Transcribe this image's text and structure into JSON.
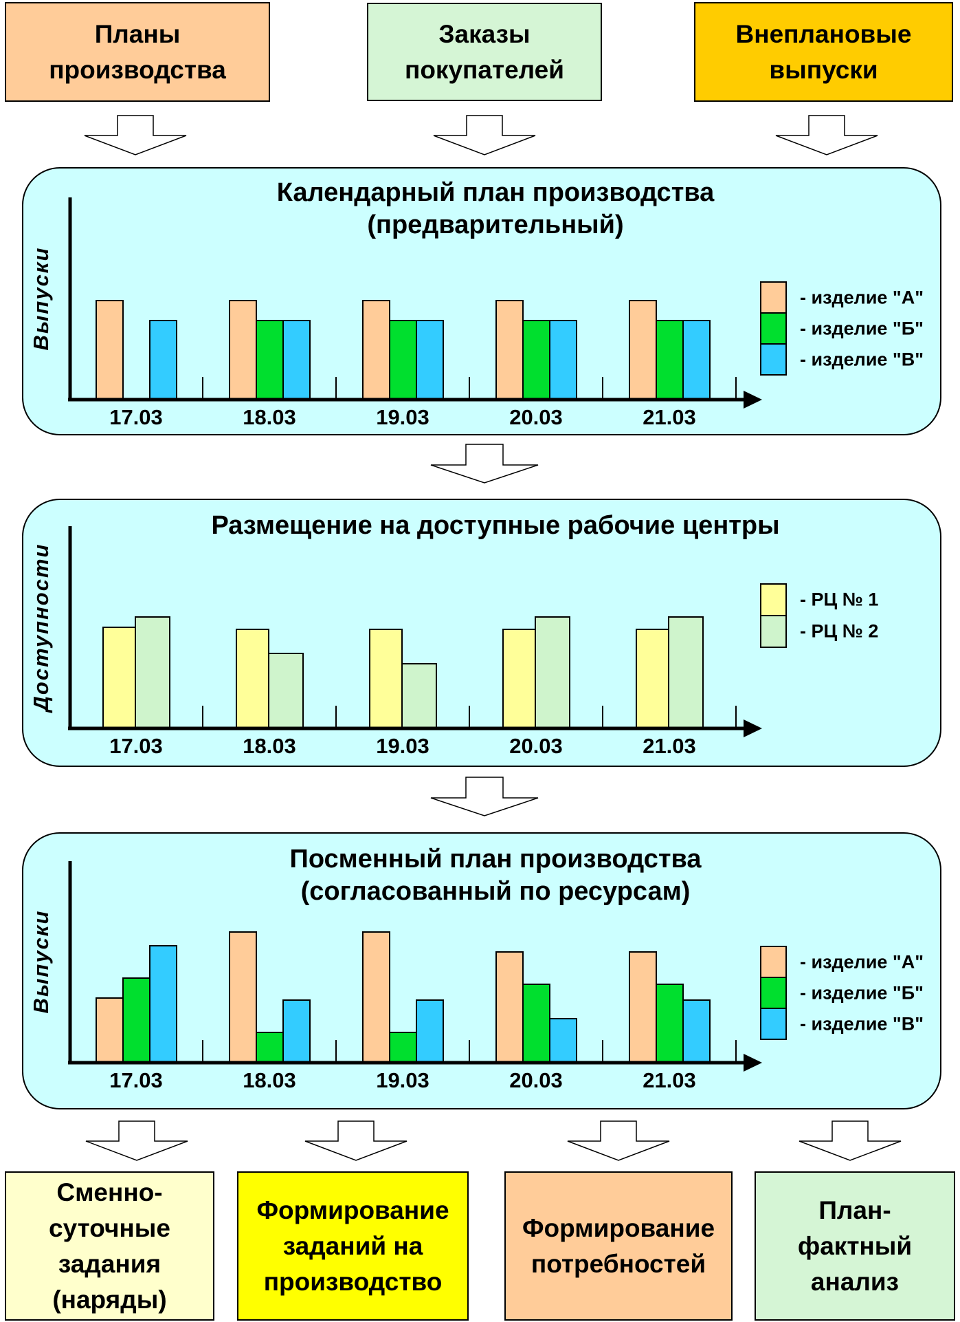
{
  "colors": {
    "panel_bg": "#CCFFFF",
    "product_a": "#FFCC99",
    "product_b": "#00DF2E",
    "product_v": "#33CCFF",
    "wc1": "#FFFF99",
    "wc2": "#CFF4CC",
    "source_plans": "#FFCC99",
    "source_orders": "#D5F5D5",
    "source_unplanned": "#FFCC00",
    "out_shift_tasks": "#FFFFCC",
    "out_prod_tasks": "#FFFF00",
    "out_requirements": "#FFCC99",
    "out_plan_fact": "#D5F5D5"
  },
  "sources": [
    {
      "label": "Планы\nпроизводства",
      "color": "#FFCC99"
    },
    {
      "label": "Заказы\nпокупателей",
      "color": "#D5F5D5"
    },
    {
      "label": "Внеплановые\nвыпуски",
      "color": "#FFCC00"
    }
  ],
  "panels": [
    {
      "title": "Календарный план производства\n(предварительный)",
      "ylabel": "Выпуски"
    },
    {
      "title": "Размещение на доступные рабочие центры",
      "ylabel": "Доступности"
    },
    {
      "title": "Посменный план производства\n(согласованный по ресурсам)",
      "ylabel": "Выпуски"
    }
  ],
  "outputs": [
    {
      "label": "Сменно-\nсуточные\nзадания\n(наряды)",
      "color": "#FFFFCC"
    },
    {
      "label": "Формирование\nзаданий на\nпроизводство",
      "color": "#FFFF00"
    },
    {
      "label": "Формирование\nпотребностей",
      "color": "#FFCC99"
    },
    {
      "label": "План-\nфактный\nанализ",
      "color": "#D5F5D5"
    }
  ],
  "chart_data": [
    {
      "type": "bar",
      "title": "Календарный план производства (предварительный)",
      "ylabel": "Выпуски",
      "xlabel": "",
      "categories": [
        "17.03",
        "18.03",
        "19.03",
        "20.03",
        "21.03"
      ],
      "series": [
        {
          "name": "изделие \"А\"",
          "legend_label": "- изделие \"А\"",
          "color": "#FFCC99",
          "values_pct": [
            49,
            49,
            49,
            49,
            49
          ]
        },
        {
          "name": "изделие \"Б\"",
          "legend_label": "- изделие \"Б\"",
          "color": "#00DF2E",
          "values_pct": [
            0,
            39,
            39,
            39,
            39
          ]
        },
        {
          "name": "изделие \"В\"",
          "legend_label": "- изделие \"В\"",
          "color": "#33CCFF",
          "values_pct": [
            39,
            39,
            39,
            39,
            39
          ]
        }
      ],
      "ylim": [
        0,
        100
      ],
      "grid": false,
      "legend_position": "right",
      "note": "no numeric y scale shown; values are % of plot height"
    },
    {
      "type": "bar",
      "title": "Размещение на доступные рабочие центры",
      "ylabel": "Доступности",
      "xlabel": "",
      "categories": [
        "17.03",
        "18.03",
        "19.03",
        "20.03",
        "21.03"
      ],
      "series": [
        {
          "name": "РЦ № 1",
          "legend_label": "- РЦ  № 1",
          "color": "#FFFF99",
          "values_pct": [
            50,
            49,
            49,
            49,
            49
          ]
        },
        {
          "name": "РЦ № 2",
          "legend_label": "- РЦ  № 2",
          "color": "#CFF4CC",
          "values_pct": [
            55,
            37,
            32,
            55,
            55
          ]
        }
      ],
      "ylim": [
        0,
        100
      ],
      "grid": false,
      "legend_position": "right",
      "note": "no numeric y scale shown; values are % of plot height"
    },
    {
      "type": "bar",
      "title": "Посменный план производства (согласованный по ресурсам)",
      "ylabel": "Выпуски",
      "xlabel": "",
      "categories": [
        "17.03",
        "18.03",
        "19.03",
        "20.03",
        "21.03"
      ],
      "series": [
        {
          "name": "изделие \"А\"",
          "legend_label": "- изделие \"А\"",
          "color": "#FFCC99",
          "values_pct": [
            32,
            65,
            65,
            55,
            55
          ]
        },
        {
          "name": "изделие \"Б\"",
          "legend_label": "- изделие \"Б\"",
          "color": "#00DF2E",
          "values_pct": [
            42,
            15,
            15,
            39,
            39
          ]
        },
        {
          "name": "изделие \"В\"",
          "legend_label": "- изделие \"В\"",
          "color": "#33CCFF",
          "values_pct": [
            58,
            31,
            31,
            22,
            31
          ]
        }
      ],
      "ylim": [
        0,
        100
      ],
      "grid": false,
      "legend_position": "right",
      "note": "no numeric y scale shown; values are % of plot height"
    }
  ]
}
